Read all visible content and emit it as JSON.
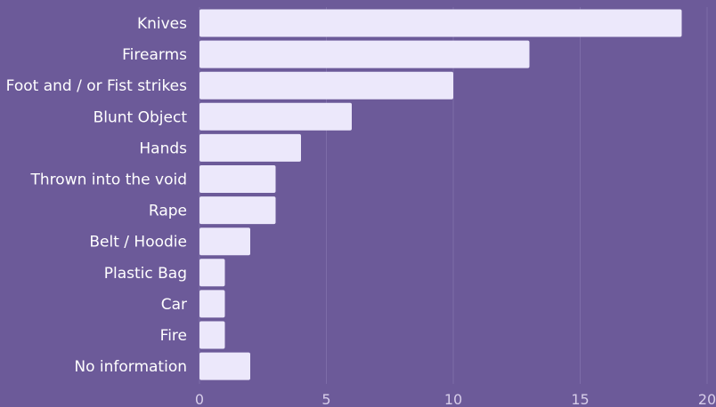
{
  "chart_data": {
    "type": "bar",
    "orientation": "horizontal",
    "categories": [
      "Knives",
      "Firearms",
      "Foot and / or Fist strikes",
      "Blunt Object",
      "Hands",
      "Thrown into the void",
      "Rape",
      "Belt / Hoodie",
      "Plastic Bag",
      "Car",
      "Fire",
      "No information"
    ],
    "values": [
      19,
      13,
      10,
      6,
      4,
      3,
      3,
      2,
      1,
      1,
      1,
      2
    ],
    "xlim": [
      0,
      20
    ],
    "xticks": [
      0,
      5,
      10,
      15,
      20
    ],
    "grid": true,
    "colors": {
      "background": "#6c5a99",
      "bar": "#ece8fb"
    }
  }
}
